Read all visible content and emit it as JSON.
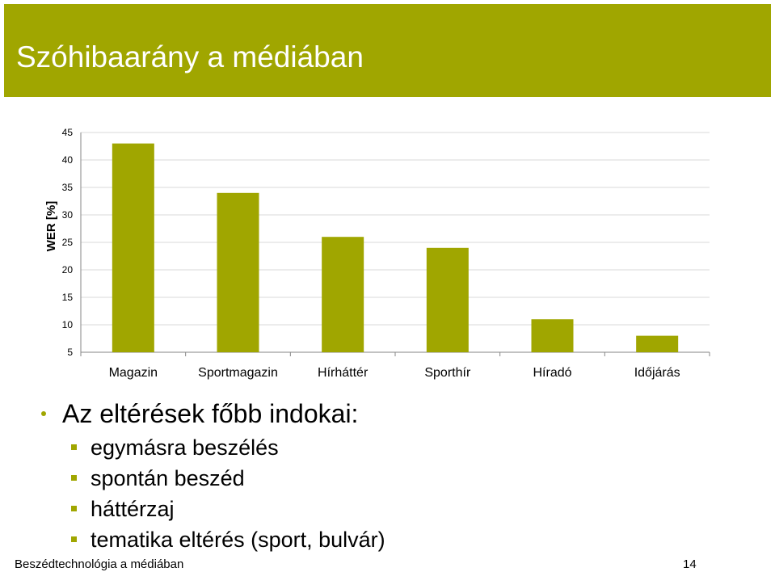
{
  "slide": {
    "title": "Szóhibaarány a médiában",
    "bullet": "Az eltérések főbb indokai:",
    "sub_bullets": [
      "egymásra beszélés",
      "spontán beszéd",
      "háttérzaj",
      "tematika eltérés (sport, bulvár)"
    ],
    "footer": "Beszédtechnológia a médiában",
    "page_number": "14"
  },
  "colors": {
    "accent": "#a0a600",
    "bar": "#a0a600",
    "grid": "#d9d9d9",
    "axis": "#868686"
  },
  "chart_data": {
    "type": "bar",
    "categories": [
      "Magazin",
      "Sportmagazin",
      "Hírháttér",
      "Sporthír",
      "Híradó",
      "Időjárás"
    ],
    "values": [
      43,
      34,
      26,
      24,
      11,
      8
    ],
    "ylabel": "WER [%]",
    "xlabel": "",
    "ylim": [
      5,
      45
    ],
    "yticks": [
      5,
      10,
      15,
      20,
      25,
      30,
      35,
      40,
      45
    ],
    "grid": true,
    "legend": "none"
  }
}
